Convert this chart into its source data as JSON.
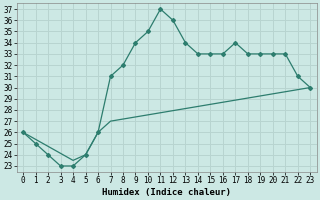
{
  "title": "",
  "xlabel": "Humidex (Indice chaleur)",
  "line1_x": [
    0,
    1,
    2,
    3,
    4,
    5,
    6,
    7,
    8,
    9,
    10,
    11,
    12,
    13,
    14,
    15,
    16,
    17,
    18,
    19,
    20,
    21,
    22,
    23
  ],
  "line1_y": [
    26,
    25,
    24,
    23,
    23,
    24,
    26,
    31,
    32,
    34,
    35,
    37,
    36,
    34,
    33,
    33,
    33,
    34,
    33,
    33,
    33,
    33,
    31,
    30
  ],
  "line2_x": [
    0,
    4,
    5,
    6,
    7,
    23
  ],
  "line2_y": [
    26,
    23.5,
    24,
    26,
    27,
    30
  ],
  "line_color": "#2d7d6e",
  "bg_color": "#cce8e4",
  "grid_color": "#b8d4d0",
  "xlim": [
    -0.5,
    23.5
  ],
  "ylim": [
    22.5,
    37.5
  ],
  "xtick_labels": [
    "0",
    "1",
    "2",
    "3",
    "4",
    "5",
    "6",
    "7",
    "8",
    "9",
    "10",
    "11",
    "12",
    "13",
    "14",
    "15",
    "16",
    "17",
    "18",
    "19",
    "20",
    "21",
    "22",
    "23"
  ],
  "xtick_vals": [
    0,
    1,
    2,
    3,
    4,
    5,
    6,
    7,
    8,
    9,
    10,
    11,
    12,
    13,
    14,
    15,
    16,
    17,
    18,
    19,
    20,
    21,
    22,
    23
  ],
  "ytick_vals": [
    23,
    24,
    25,
    26,
    27,
    28,
    29,
    30,
    31,
    32,
    33,
    34,
    35,
    36,
    37
  ],
  "tick_fontsize": 5.5,
  "xlabel_fontsize": 6.5,
  "markersize": 2.0
}
